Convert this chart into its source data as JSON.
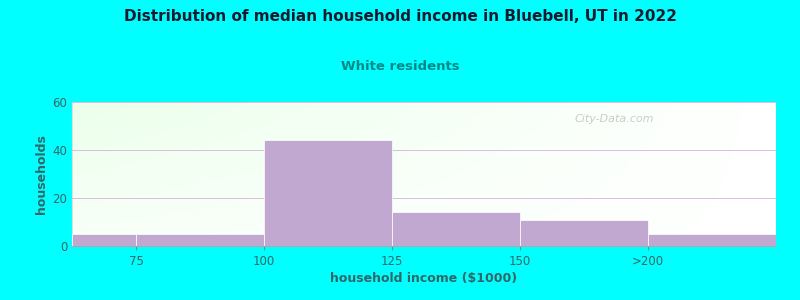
{
  "title": "Distribution of median household income in Bluebell, UT in 2022",
  "subtitle": "White residents",
  "xlabel": "household income ($1000)",
  "ylabel": "households",
  "background_outer": "#00FFFF",
  "bar_color": "#c0a8d0",
  "bar_edge_color": "#b090b8",
  "title_color": "#1a1a2e",
  "subtitle_color": "#008888",
  "axis_label_color": "#336666",
  "tick_label_color": "#336666",
  "values": [
    5,
    5,
    44,
    14,
    11,
    5
  ],
  "bar_lefts": [
    0.0,
    0.5,
    1.5,
    2.5,
    3.5,
    4.5
  ],
  "bar_widths": [
    0.5,
    1.0,
    1.0,
    1.0,
    1.0,
    1.0
  ],
  "x_tick_pos": [
    0.5,
    1.5,
    2.5,
    3.5,
    4.5
  ],
  "x_tick_labels": [
    "75",
    "100",
    "125",
    "150",
    ">200"
  ],
  "xlim": [
    0.0,
    5.5
  ],
  "ylim": [
    0,
    60
  ],
  "yticks": [
    0,
    20,
    40,
    60
  ],
  "watermark": "City-Data.com"
}
